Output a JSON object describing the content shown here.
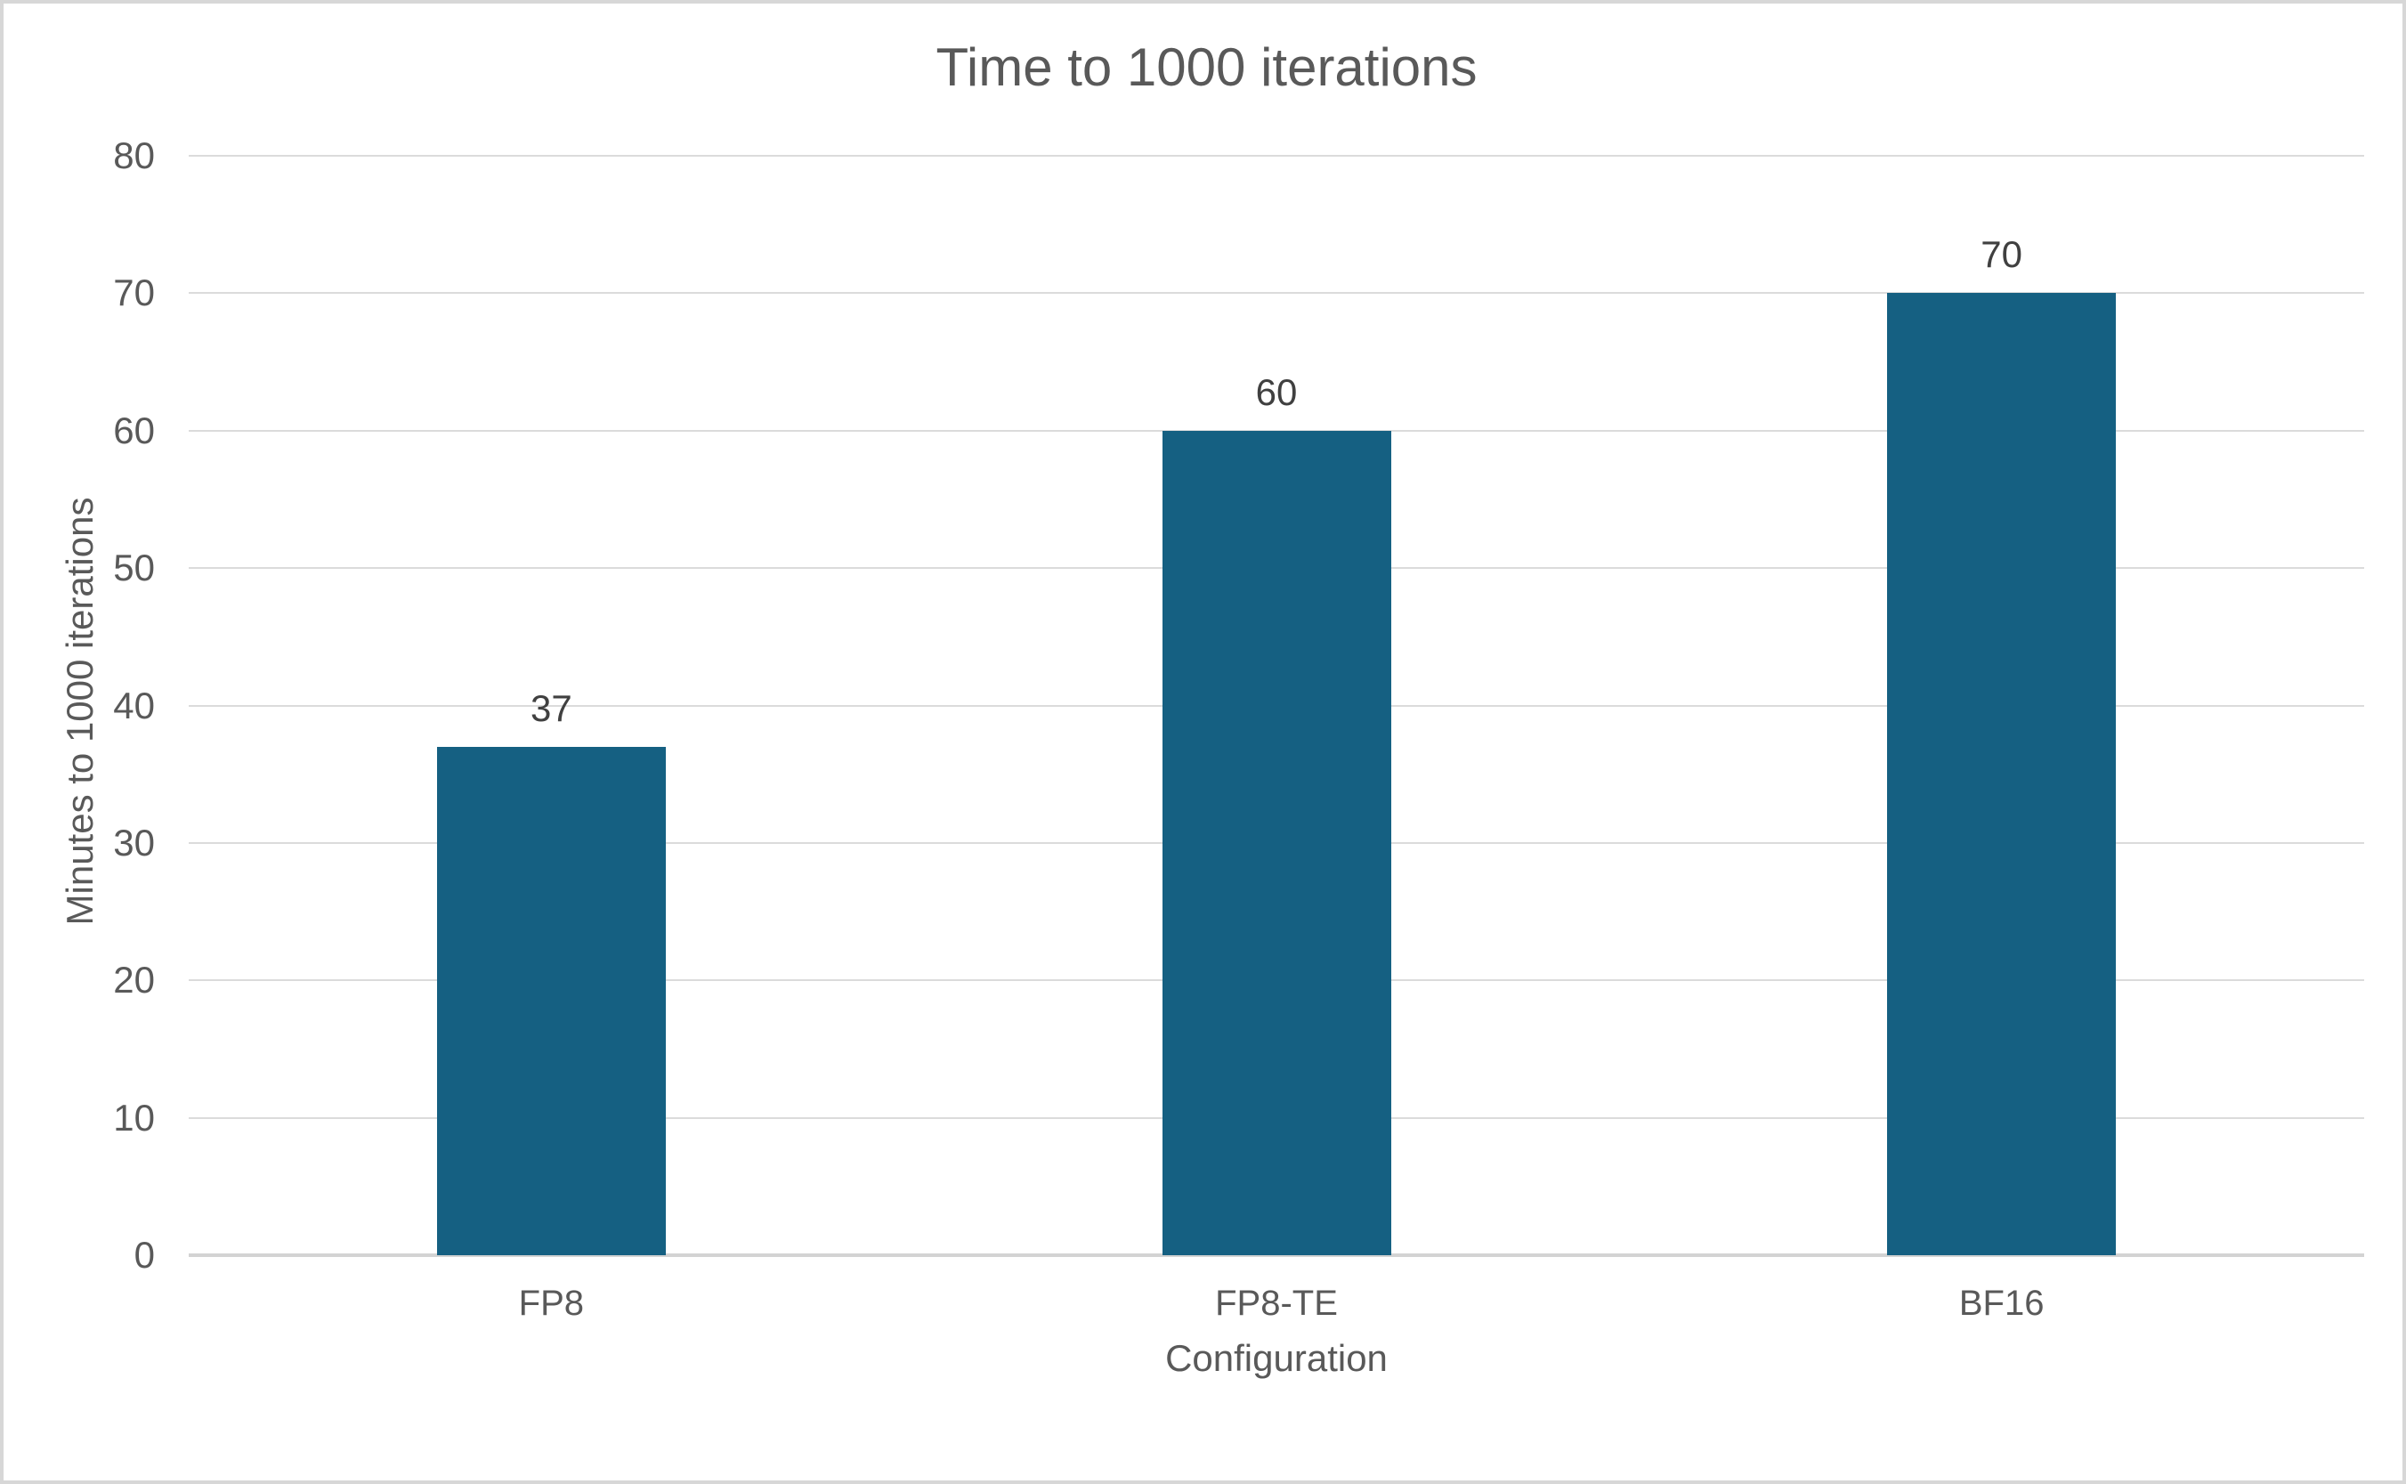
{
  "chart_data": {
    "type": "bar",
    "title": "Time to 1000 iterations",
    "xlabel": "Configuration",
    "ylabel": "Minutes to 1000 iterations",
    "categories": [
      "FP8",
      "FP8-TE",
      "BF16"
    ],
    "values": [
      37,
      60,
      70
    ],
    "data_labels": [
      "37",
      "60",
      "70"
    ],
    "ylim": [
      0,
      80
    ],
    "ytick_step": 10,
    "yticks": [
      0,
      10,
      20,
      30,
      40,
      50,
      60,
      70,
      80
    ],
    "grid": "horizontal",
    "legend": "none",
    "colors": {
      "bar": "#156082",
      "title_text": "#595959",
      "axis_text": "#595959",
      "data_label_text": "#404040",
      "gridline": "#dbdbdb",
      "axis_line": "#d3d3d3",
      "frame_border": "#d7d7d7",
      "background": "#ffffff"
    }
  }
}
